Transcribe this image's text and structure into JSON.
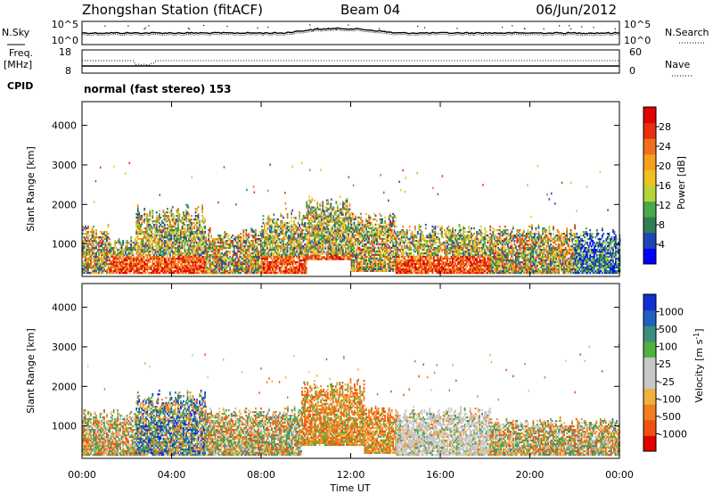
{
  "header": {
    "station": "Zhongshan Station (fitACF)",
    "beam": "Beam 04",
    "date": "06/Jun/2012"
  },
  "strip_labels": {
    "nsky": "N.Sky",
    "nsearch": "N.Search",
    "freq": "Freq.",
    "freq_unit": "[MHz]",
    "nave": "Nave",
    "cpid": "CPID",
    "cpid_text": "normal (fast stereo) 153",
    "noise_ticks_left": [
      "10^5",
      "10^0"
    ],
    "noise_ticks_right": [
      "10^5",
      "10^0"
    ],
    "freq_ticks": [
      "18",
      "8"
    ],
    "nave_ticks": [
      "60",
      "0"
    ]
  },
  "chart_data": [
    {
      "type": "heatmap",
      "quantity": "power",
      "xlabel": "",
      "ylabel": "Slant Range [km]",
      "xlim": [
        "00:00",
        "24:00"
      ],
      "ylim": [
        180,
        4600
      ],
      "yticks": [
        "1000",
        "2000",
        "3000",
        "4000"
      ],
      "colorbar": {
        "label": "Power [dB]",
        "ticks": [
          "4",
          "8",
          "12",
          "16",
          "20",
          "24",
          "28"
        ],
        "colors": [
          "#0000ff",
          "#1e46b4",
          "#2e7d53",
          "#48a84a",
          "#b5d43c",
          "#f0c020",
          "#f5a020",
          "#ee7020",
          "#e83010",
          "#e00000"
        ]
      },
      "echo_regions": [
        {
          "t0": 0.0,
          "t1": 1.2,
          "r0": 250,
          "r1": 1500,
          "level": "mid"
        },
        {
          "t0": 1.2,
          "t1": 2.4,
          "r0": 250,
          "r1": 1200,
          "level": "high"
        },
        {
          "t0": 2.4,
          "t1": 5.5,
          "r0": 250,
          "r1": 2000,
          "level": "high"
        },
        {
          "t0": 5.5,
          "t1": 8.0,
          "r0": 250,
          "r1": 1400,
          "level": "mid"
        },
        {
          "t0": 8.0,
          "t1": 10.0,
          "r0": 250,
          "r1": 1800,
          "level": "high"
        },
        {
          "t0": 10.0,
          "t1": 12.0,
          "r0": 600,
          "r1": 2200,
          "level": "high"
        },
        {
          "t0": 12.0,
          "t1": 14.0,
          "r0": 300,
          "r1": 1800,
          "level": "mid"
        },
        {
          "t0": 14.0,
          "t1": 18.2,
          "r0": 250,
          "r1": 1500,
          "level": "high"
        },
        {
          "t0": 18.2,
          "t1": 22.0,
          "r0": 250,
          "r1": 1500,
          "level": "mid"
        },
        {
          "t0": 22.0,
          "t1": 24.0,
          "r0": 250,
          "r1": 1400,
          "level": "low"
        }
      ]
    },
    {
      "type": "heatmap",
      "quantity": "velocity",
      "xlabel": "Time UT",
      "ylabel": "Slant Range [km]",
      "xlim": [
        "00:00",
        "24:00"
      ],
      "ylim": [
        180,
        4600
      ],
      "xticks": [
        "00:00",
        "04:00",
        "08:00",
        "12:00",
        "16:00",
        "20:00",
        "00:00"
      ],
      "yticks": [
        "1000",
        "2000",
        "3000",
        "4000"
      ],
      "colorbar": {
        "label": "Velocity [m s^-1]",
        "ticks": [
          "1000",
          "500",
          "100",
          "25",
          "-25",
          "-100",
          "-500",
          "-1000"
        ],
        "colors": [
          "#1030d0",
          "#2060c0",
          "#3a8e7a",
          "#50b040",
          "#c8c8c8",
          "#c8c8c8",
          "#f0b040",
          "#f08020",
          "#f05010",
          "#e00000"
        ]
      },
      "echo_regions": [
        {
          "t0": 0.0,
          "t1": 2.4,
          "r0": 250,
          "r1": 1400,
          "level": "mixed"
        },
        {
          "t0": 2.4,
          "t1": 5.5,
          "r0": 250,
          "r1": 1900,
          "level": "positive"
        },
        {
          "t0": 5.5,
          "t1": 9.8,
          "r0": 250,
          "r1": 1500,
          "level": "mixed"
        },
        {
          "t0": 9.8,
          "t1": 12.6,
          "r0": 500,
          "r1": 2200,
          "level": "negative"
        },
        {
          "t0": 12.6,
          "t1": 14.0,
          "r0": 300,
          "r1": 1500,
          "level": "negative"
        },
        {
          "t0": 14.0,
          "t1": 18.2,
          "r0": 250,
          "r1": 1500,
          "level": "ground"
        },
        {
          "t0": 18.2,
          "t1": 24.0,
          "r0": 250,
          "r1": 1200,
          "level": "mixed"
        }
      ]
    }
  ]
}
